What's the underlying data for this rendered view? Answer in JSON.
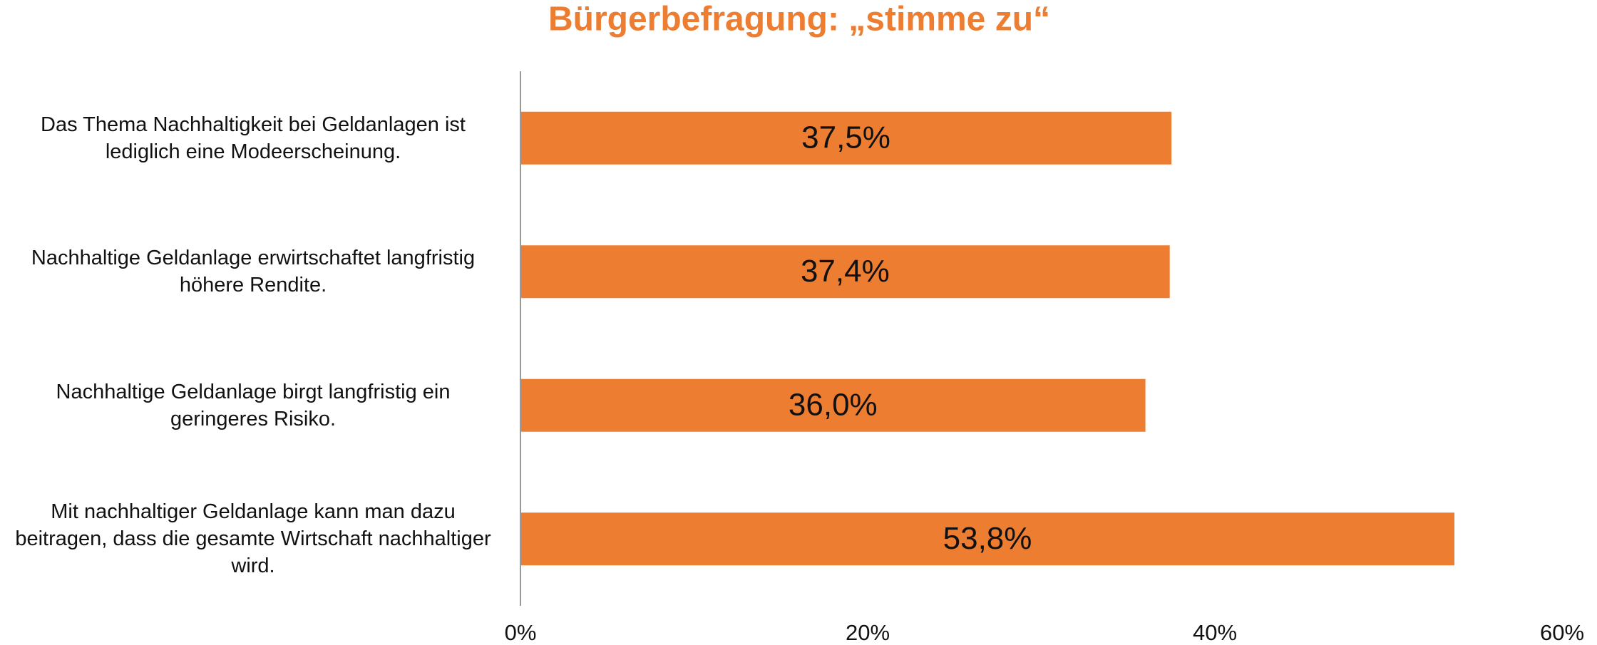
{
  "chart_data": {
    "type": "bar",
    "orientation": "horizontal",
    "title": "Bürgerbefragung: „stimme zu“",
    "categories": [
      "Das Thema Nachhaltigkeit bei Geldanlagen ist lediglich eine Modeerscheinung.",
      "Nachhaltige Geldanlage erwirtschaftet langfristig höhere Rendite.",
      "Nachhaltige Geldanlage birgt langfristig ein geringeres Risiko.",
      "Mit nachhaltiger Geldanlage kann man dazu beitragen, dass die gesamte Wirtschaft nachhaltiger wird."
    ],
    "values": [
      37.5,
      37.4,
      36.0,
      53.8
    ],
    "value_labels": [
      "37,5%",
      "37,4%",
      "36,0%",
      "53,8%"
    ],
    "color": "#ed7d31",
    "xlim": [
      0,
      60
    ],
    "xticks": [
      {
        "value": 0,
        "label": "0%"
      },
      {
        "value": 20,
        "label": "20%"
      },
      {
        "value": 40,
        "label": "40%"
      },
      {
        "value": 60,
        "label": "60%"
      }
    ],
    "grid": false
  }
}
